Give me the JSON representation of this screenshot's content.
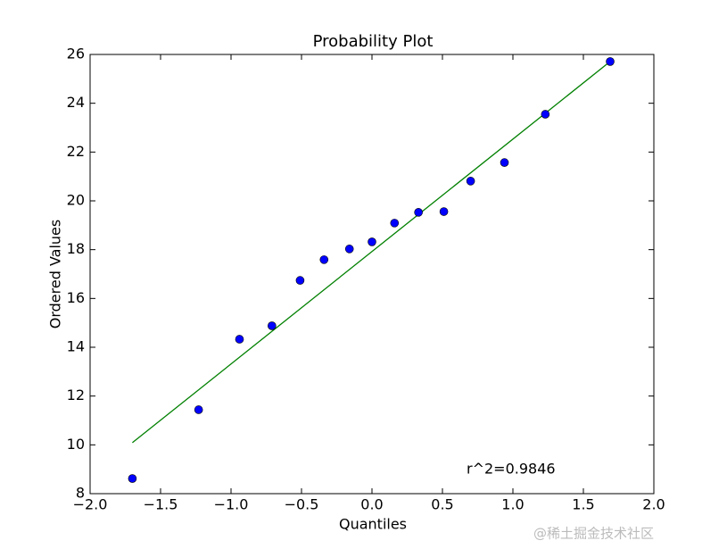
{
  "chart_data": {
    "type": "probplot",
    "title": "Probability Plot",
    "x_label": "Quantiles",
    "y_label": "Ordered Values",
    "annotation": "r^2=0.9846",
    "watermark": "@稀土掘金技术社区",
    "x": [
      -1.7,
      -1.23,
      -0.94,
      -0.71,
      -0.51,
      -0.34,
      -0.16,
      0.0,
      0.16,
      0.33,
      0.51,
      0.7,
      0.94,
      1.23,
      1.69
    ],
    "values": [
      8.62,
      11.44,
      14.33,
      14.88,
      16.74,
      17.59,
      18.03,
      18.32,
      19.09,
      19.53,
      19.56,
      20.81,
      21.57,
      23.55,
      25.71
    ],
    "color": "#0000ff",
    "fit_line": {
      "x": [
        -1.7,
        1.69
      ],
      "values": [
        10.09,
        25.71
      ],
      "color": "#008000"
    },
    "xlim": [
      -2.0,
      2.0
    ],
    "xticks": [
      {
        "value": -2.0,
        "label": "−2.0"
      },
      {
        "value": -1.5,
        "label": "−1.5"
      },
      {
        "value": -1.0,
        "label": "−1.0"
      },
      {
        "value": -0.5,
        "label": "−0.5"
      },
      {
        "value": 0.0,
        "label": "0.0"
      },
      {
        "value": 0.5,
        "label": "0.5"
      },
      {
        "value": 1.0,
        "label": "1.0"
      },
      {
        "value": 1.5,
        "label": "1.5"
      },
      {
        "value": 2.0,
        "label": "2.0"
      }
    ],
    "ylim": [
      8,
      26
    ],
    "yticks": [
      8,
      10,
      12,
      14,
      16,
      18,
      20,
      22,
      24,
      26
    ],
    "grid": false
  }
}
